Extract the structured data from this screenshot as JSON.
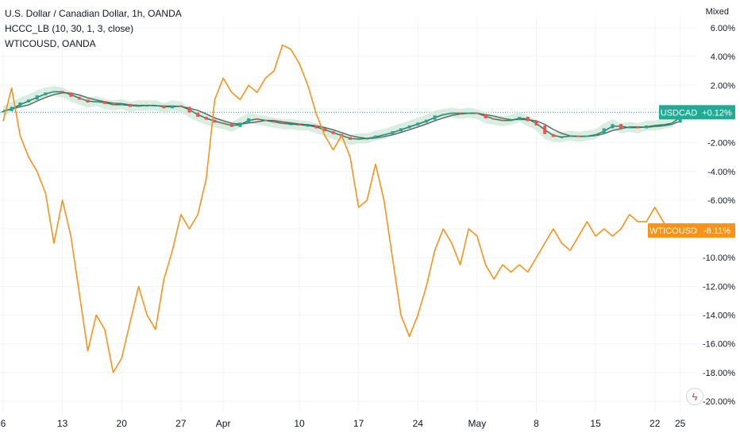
{
  "legend": {
    "title": "U.S. Dollar / Canadian Dollar, 1h, OANDA",
    "indicator": "HCCC_LB (10, 30, 1, 3, close)",
    "compare": "WTICOUSD, OANDA"
  },
  "scale_mode": "Mixed",
  "colors": {
    "usdcad_up": "#26a69a",
    "usdcad_down": "#ef5350",
    "usdcad_badge": "#22ab94",
    "wti": "#f7931a",
    "indicator_band": "#cfe8d8",
    "indicator_line_fast": "#2e7d5b",
    "indicator_line_slow": "#5d6b6b",
    "grid": "#f0f3fa",
    "axis_text": "#131722"
  },
  "icons": {
    "compare_flash": "lightning-bolt-icon"
  },
  "chart_data": {
    "type": "line",
    "title": "U.S. Dollar / Canadian Dollar, 1h, OANDA",
    "xlabel": "",
    "ylabel": "",
    "ylim": [
      -20.5,
      6.5
    ],
    "y_ticks": [
      "6.00%",
      "4.00%",
      "2.00%",
      "0.00%",
      "-2.00%",
      "-4.00%",
      "-6.00%",
      "-8.00%",
      "-10.00%",
      "-12.00%",
      "-14.00%",
      "-16.00%",
      "-18.00%",
      "-20.00%"
    ],
    "y_tick_values": [
      6,
      4,
      2,
      0,
      -2,
      -4,
      -6,
      -8,
      -10,
      -12,
      -14,
      -16,
      -18,
      -20
    ],
    "x_ticks": [
      "6",
      "13",
      "20",
      "27",
      "Apr",
      "10",
      "17",
      "24",
      "May",
      "8",
      "15",
      "22",
      "25"
    ],
    "x_tick_values": [
      0,
      7,
      14,
      21,
      26,
      35,
      42,
      49,
      56,
      63,
      70,
      77,
      80
    ],
    "x_range": [
      0,
      82
    ],
    "grid": true,
    "series": [
      {
        "name": "USDCAD",
        "last_label": "+0.12%",
        "style": "candles",
        "x": [
          0,
          1,
          2,
          3,
          4,
          5,
          6,
          7,
          8,
          9,
          10,
          11,
          12,
          13,
          14,
          15,
          16,
          17,
          18,
          19,
          20,
          21,
          22,
          23,
          24,
          25,
          26,
          27,
          28,
          29,
          30,
          31,
          32,
          33,
          34,
          35,
          36,
          37,
          38,
          39,
          40,
          41,
          42,
          43,
          44,
          45,
          46,
          47,
          48,
          49,
          50,
          51,
          52,
          53,
          54,
          55,
          56,
          57,
          58,
          59,
          60,
          61,
          62,
          63,
          64,
          65,
          66,
          67,
          68,
          69,
          70,
          71,
          72,
          73,
          74,
          75,
          76,
          77,
          78,
          79,
          80
        ],
        "values": [
          0.2,
          0.5,
          0.8,
          1.0,
          1.3,
          1.5,
          1.6,
          1.5,
          1.2,
          1.0,
          0.8,
          0.9,
          0.7,
          0.6,
          0.7,
          0.5,
          0.6,
          0.6,
          0.6,
          0.4,
          0.6,
          0.5,
          0.1,
          -0.2,
          -0.4,
          -0.6,
          -0.7,
          -0.9,
          -0.6,
          -0.3,
          -0.4,
          -0.5,
          -0.6,
          -0.7,
          -0.7,
          -0.8,
          -0.8,
          -1.0,
          -1.2,
          -1.4,
          -1.6,
          -1.8,
          -1.7,
          -1.7,
          -1.5,
          -1.4,
          -1.2,
          -1.0,
          -0.8,
          -0.6,
          -0.4,
          -0.1,
          0.0,
          0.1,
          0.0,
          0.1,
          0.0,
          -0.3,
          -0.4,
          -0.5,
          -0.4,
          -0.2,
          -0.5,
          -0.8,
          -1.4,
          -1.6,
          -1.6,
          -1.5,
          -1.6,
          -1.5,
          -1.4,
          -1.0,
          -0.7,
          -1.0,
          -0.9,
          -1.0,
          -0.8,
          -0.8,
          -0.7,
          -0.6,
          0.12
        ]
      },
      {
        "name": "WTICOUSD",
        "last_label": "-8.11%",
        "style": "line",
        "x": [
          0,
          1,
          2,
          3,
          4,
          5,
          6,
          7,
          8,
          9,
          10,
          11,
          12,
          13,
          14,
          15,
          16,
          17,
          18,
          19,
          20,
          21,
          22,
          23,
          24,
          25,
          26,
          27,
          28,
          29,
          30,
          31,
          32,
          33,
          34,
          35,
          36,
          37,
          38,
          39,
          40,
          41,
          42,
          43,
          44,
          45,
          46,
          47,
          48,
          49,
          50,
          51,
          52,
          53,
          54,
          55,
          56,
          57,
          58,
          59,
          60,
          61,
          62,
          63,
          64,
          65,
          66,
          67,
          68,
          69,
          70,
          71,
          72,
          73,
          74,
          75,
          76,
          77,
          78,
          79,
          80
        ],
        "values": [
          -0.5,
          1.8,
          -1.5,
          -3.0,
          -4.0,
          -5.5,
          -9.0,
          -6.0,
          -8.5,
          -12.5,
          -16.5,
          -14.0,
          -15.0,
          -18.0,
          -17.0,
          -14.5,
          -12.0,
          -14.0,
          -15.0,
          -11.5,
          -9.5,
          -7.0,
          -8.0,
          -7.0,
          -4.5,
          1.0,
          2.5,
          1.5,
          1.0,
          2.0,
          1.5,
          2.5,
          3.0,
          4.8,
          4.5,
          3.5,
          2.0,
          0.0,
          -1.5,
          -2.5,
          -1.5,
          -3.0,
          -6.5,
          -6.0,
          -3.5,
          -6.0,
          -10.0,
          -14.0,
          -15.5,
          -14.0,
          -12.0,
          -9.5,
          -8.0,
          -9.0,
          -10.5,
          -8.0,
          -8.5,
          -10.5,
          -11.5,
          -10.5,
          -11.0,
          -10.5,
          -11.0,
          -10.0,
          -9.0,
          -8.0,
          -9.0,
          -9.5,
          -8.5,
          -7.5,
          -8.5,
          -8.0,
          -8.5,
          -8.0,
          -7.0,
          -7.5,
          -7.5,
          -6.5,
          -7.5,
          -8.5,
          -8.11
        ]
      }
    ]
  }
}
